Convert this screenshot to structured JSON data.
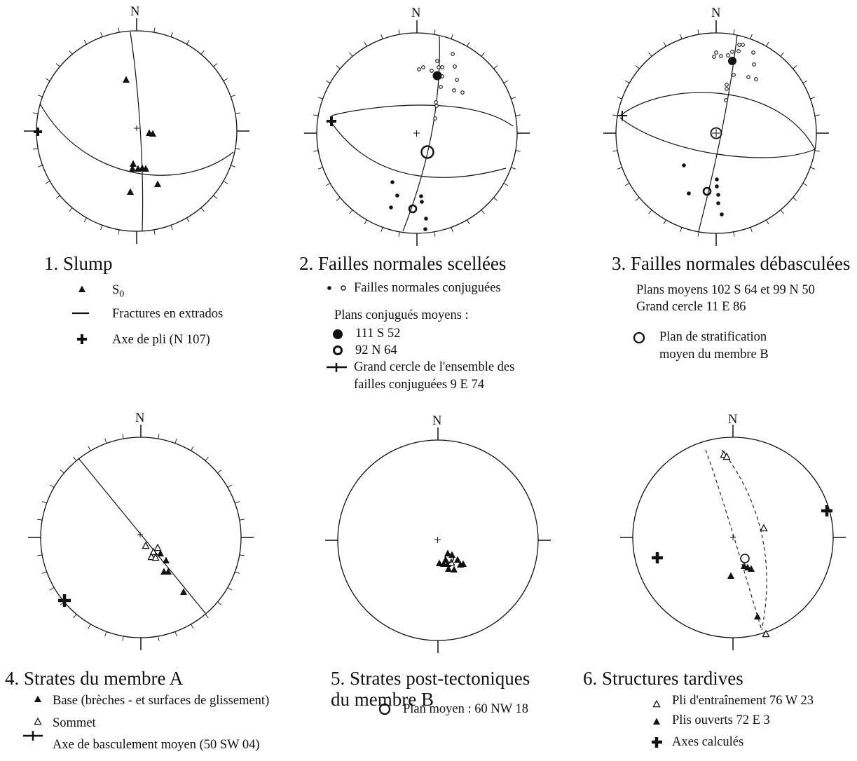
{
  "diagrams": [
    {
      "north": "N",
      "title": "1. Slump",
      "legend": [
        {
          "symbol": "filled-triangle",
          "text": "S",
          "sub": "0"
        },
        {
          "symbol": "line",
          "text": "Fractures en extrados"
        },
        {
          "symbol": "cross",
          "text": "Axe de pli (N 107)"
        }
      ]
    },
    {
      "north": "N",
      "title": "2. Failles normales scellées",
      "legend": [
        {
          "symbol": "dot-pair",
          "text": "Failles normales conjuguées"
        },
        {
          "symbol": "none",
          "text": "Plans conjugués moyens :"
        },
        {
          "symbol": "filled-circle",
          "text": "111  S 52"
        },
        {
          "symbol": "ring",
          "text": "92  N 64"
        },
        {
          "symbol": "line-cross",
          "text": "Grand cercle de l'ensemble des"
        },
        {
          "symbol": "none",
          "text": "failles conjuguées 9 E 74"
        }
      ]
    },
    {
      "north": "N",
      "title": "3. Failles normales débasculées",
      "legend": [
        {
          "symbol": "none",
          "text": "Plans moyens 102  S 64 et 99  N 50"
        },
        {
          "symbol": "none",
          "text": "Grand cercle 11 E 86"
        },
        {
          "symbol": "open-circle",
          "text": "Plan de stratification"
        },
        {
          "symbol": "none",
          "text": "moyen du membre B"
        }
      ]
    },
    {
      "north": "N",
      "title": "4. Strates du membre A",
      "legend": [
        {
          "symbol": "filled-triangle",
          "text": "Base (brèches - et surfaces de glissement)"
        },
        {
          "symbol": "open-triangle",
          "text": "Sommet"
        },
        {
          "symbol": "line-cross",
          "text": "Axe de basculement moyen (50 SW 04)"
        }
      ]
    },
    {
      "north": "N",
      "title": "5. Strates post-tectoniques",
      "title2": "du membre B",
      "legend": [
        {
          "symbol": "open-circle",
          "text": "Plan moyen : 60 NW 18"
        }
      ]
    },
    {
      "north": "N",
      "title": "6. Structures tardives",
      "legend": [
        {
          "symbol": "open-triangle",
          "text": "Pli d'entraînement  76 W 23"
        },
        {
          "symbol": "filled-triangle",
          "text": "Plis ouverts 72 E 3"
        },
        {
          "symbol": "cross",
          "text": "Axes calculés"
        }
      ]
    }
  ]
}
